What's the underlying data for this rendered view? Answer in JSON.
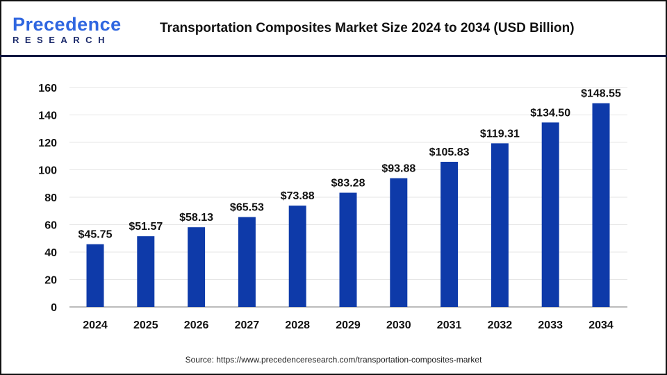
{
  "logo": {
    "line1_a": "P",
    "line1_b": "recedence",
    "line2": "RESEARCH"
  },
  "title": "Transportation Composites Market Size 2024 to 2034 (USD Billion)",
  "source": "Source: https://www.precedenceresearch.com/transportation-composites-market",
  "colors": {
    "bar": "#0e3aa9",
    "header_line": "#0f1640"
  },
  "chart_data": {
    "type": "bar",
    "title": "Transportation Composites Market Size 2024 to 2034 (USD Billion)",
    "categories": [
      "2024",
      "2025",
      "2026",
      "2027",
      "2028",
      "2029",
      "2030",
      "2031",
      "2032",
      "2033",
      "2034"
    ],
    "values": [
      45.75,
      51.57,
      58.13,
      65.53,
      73.88,
      83.28,
      93.88,
      105.83,
      119.31,
      134.5,
      148.55
    ],
    "labels": [
      "$45.75",
      "$51.57",
      "$58.13",
      "$65.53",
      "$73.88",
      "$83.28",
      "$93.88",
      "$105.83",
      "$119.31",
      "$134.50",
      "$148.55"
    ],
    "ylim": [
      0,
      160
    ],
    "yticks": [
      0,
      20,
      40,
      60,
      80,
      100,
      120,
      140,
      160
    ],
    "grid": true,
    "legend": "none"
  }
}
